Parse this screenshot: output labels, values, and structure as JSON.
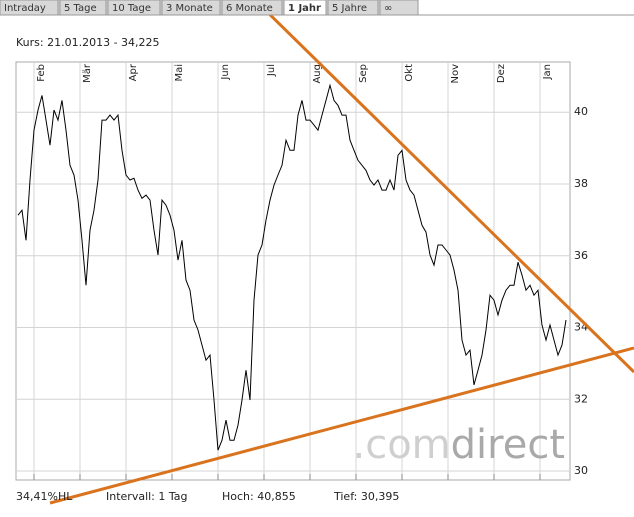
{
  "tabs": [
    {
      "label": "Intraday",
      "active": false
    },
    {
      "label": "5 Tage",
      "active": false
    },
    {
      "label": "10 Tage",
      "active": false
    },
    {
      "label": "3 Monate",
      "active": false
    },
    {
      "label": "6 Monate",
      "active": false
    },
    {
      "label": "1 Jahr",
      "active": true
    },
    {
      "label": "5 Jahre",
      "active": false
    },
    {
      "label": "∞",
      "active": false
    }
  ],
  "header": "Kurs: 21.01.2013 - 34,225",
  "footer": [
    "34,41%HL",
    "Intervall: 1 Tag",
    "Hoch: 40,855",
    "Tief: 30,395"
  ],
  "watermark": [
    ".com",
    "direct"
  ],
  "chart_data": {
    "type": "line",
    "grid": true,
    "y_axis_side": "right",
    "xlim": [
      -0.5,
      138
    ],
    "ylim": [
      29.75,
      41.4
    ],
    "xticks": [
      {
        "value": 4,
        "label": "Feb"
      },
      {
        "value": 15.5,
        "label": "Mär"
      },
      {
        "value": 27,
        "label": "Apr"
      },
      {
        "value": 38.5,
        "label": "Mai"
      },
      {
        "value": 50,
        "label": "Jun"
      },
      {
        "value": 61.5,
        "label": "Jul"
      },
      {
        "value": 73,
        "label": "Aug"
      },
      {
        "value": 84.5,
        "label": "Sep"
      },
      {
        "value": 96,
        "label": "Okt"
      },
      {
        "value": 107.5,
        "label": "Nov"
      },
      {
        "value": 119,
        "label": "Dez"
      },
      {
        "value": 130.5,
        "label": "Jan"
      }
    ],
    "yticks": [
      30,
      32,
      34,
      36,
      38,
      40
    ],
    "series": [
      {
        "color": "#000000",
        "values": [
          37.13,
          37.27,
          36.43,
          38.11,
          39.5,
          40.06,
          40.47,
          39.78,
          39.08,
          40.06,
          39.78,
          40.33,
          39.5,
          38.52,
          38.25,
          37.55,
          36.43,
          35.18,
          36.71,
          37.27,
          38.11,
          39.78,
          39.78,
          39.92,
          39.78,
          39.92,
          38.94,
          38.25,
          38.11,
          38.16,
          37.83,
          37.6,
          37.69,
          37.55,
          36.71,
          36.02,
          37.55,
          37.41,
          37.13,
          36.71,
          35.88,
          36.43,
          35.32,
          35.04,
          34.21,
          33.93,
          33.51,
          33.09,
          33.23,
          31.98,
          30.58,
          30.86,
          31.42,
          30.86,
          30.86,
          31.28,
          31.98,
          32.81,
          31.98,
          34.76,
          36.02,
          36.3,
          36.99,
          37.55,
          37.97,
          38.25,
          38.52,
          39.22,
          38.94,
          38.94,
          39.92,
          40.33,
          39.78,
          39.78,
          39.64,
          39.5,
          39.92,
          40.33,
          40.75,
          40.33,
          40.19,
          39.92,
          39.92,
          39.22,
          38.94,
          38.66,
          38.52,
          38.38,
          38.11,
          37.97,
          38.11,
          37.83,
          37.83,
          38.11,
          37.83,
          38.8,
          38.94,
          38.11,
          37.83,
          37.69,
          37.27,
          36.85,
          36.66,
          36.02,
          35.74,
          36.3,
          36.3,
          36.16,
          36.02,
          35.6,
          35.04,
          33.65,
          33.23,
          33.37,
          32.4,
          32.81,
          33.23,
          33.93,
          34.9,
          34.76,
          34.35,
          34.76,
          35.04,
          35.18,
          35.18,
          35.82,
          35.46,
          35.04,
          35.18,
          34.9,
          35.04,
          34.07,
          33.65,
          34.07,
          33.65,
          33.23,
          33.51,
          34.21
        ]
      }
    ]
  }
}
